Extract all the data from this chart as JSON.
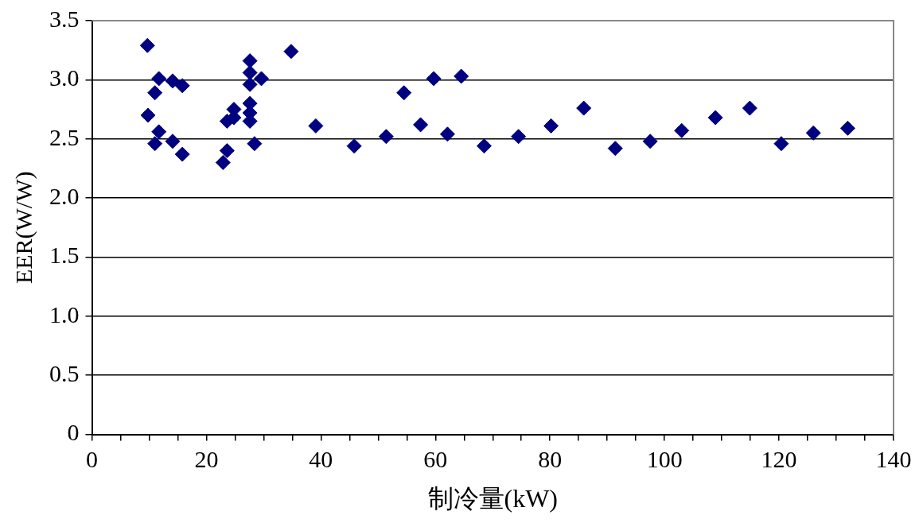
{
  "chart_data": {
    "type": "scatter",
    "xlabel": "制冷量(kW)",
    "ylabel": "EER(W/W)",
    "marker": "diamond",
    "grid": "y",
    "legend": false,
    "xlim": [
      0,
      140
    ],
    "ylim": [
      0,
      3.5
    ],
    "xticks": [
      0,
      {
        "value": 5,
        "label": null
      },
      {
        "value": 10,
        "label": null
      },
      {
        "value": 15,
        "label": null
      },
      20,
      {
        "value": 25,
        "label": null
      },
      {
        "value": 30,
        "label": null
      },
      {
        "value": 35,
        "label": null
      },
      40,
      {
        "value": 45,
        "label": null
      },
      {
        "value": 50,
        "label": null
      },
      {
        "value": 55,
        "label": null
      },
      60,
      {
        "value": 65,
        "label": null
      },
      {
        "value": 70,
        "label": null
      },
      {
        "value": 75,
        "label": null
      },
      80,
      {
        "value": 85,
        "label": null
      },
      {
        "value": 90,
        "label": null
      },
      {
        "value": 95,
        "label": null
      },
      100,
      {
        "value": 105,
        "label": null
      },
      {
        "value": 110,
        "label": null
      },
      {
        "value": 115,
        "label": null
      },
      120,
      {
        "value": 125,
        "label": null
      },
      {
        "value": 130,
        "label": null
      },
      {
        "value": 135,
        "label": null
      },
      140
    ],
    "yticks": [
      0,
      {
        "value": 0.5,
        "label": "0.5"
      },
      {
        "value": 1,
        "label": "1.0"
      },
      {
        "value": 1.5,
        "label": "1.5"
      },
      {
        "value": 2,
        "label": "2.0"
      },
      {
        "value": 2.5,
        "label": "2.5"
      },
      {
        "value": 3,
        "label": "3.0"
      },
      {
        "value": 3.5,
        "label": "3.5"
      }
    ],
    "series": [
      {
        "color": "#000080",
        "x": [
          9.7,
          9.8,
          11.0,
          11.0,
          11.7,
          11.7,
          14.1,
          14.1,
          15.8,
          15.8,
          22.9,
          23.6,
          23.6,
          24.8,
          24.8,
          27.6,
          27.6,
          27.6,
          27.6,
          27.6,
          27.6,
          28.4,
          29.6,
          34.8,
          39.1,
          45.8,
          51.4,
          54.5,
          57.4,
          59.7,
          62.1,
          64.5,
          68.5,
          74.5,
          80.2,
          85.9,
          91.4,
          97.5,
          103.0,
          108.9,
          114.9,
          120.4,
          126.0,
          132.0
        ],
        "values": [
          3.29,
          2.7,
          2.89,
          2.46,
          3.01,
          2.56,
          2.99,
          2.48,
          2.95,
          2.37,
          2.3,
          2.65,
          2.4,
          2.75,
          2.68,
          3.16,
          3.06,
          2.96,
          2.8,
          2.72,
          2.65,
          2.46,
          3.01,
          3.24,
          2.61,
          2.44,
          2.52,
          2.89,
          2.62,
          3.01,
          2.54,
          3.03,
          2.44,
          2.52,
          2.61,
          2.76,
          2.42,
          2.48,
          2.57,
          2.68,
          2.76,
          2.46,
          2.55,
          2.59
        ]
      }
    ]
  }
}
